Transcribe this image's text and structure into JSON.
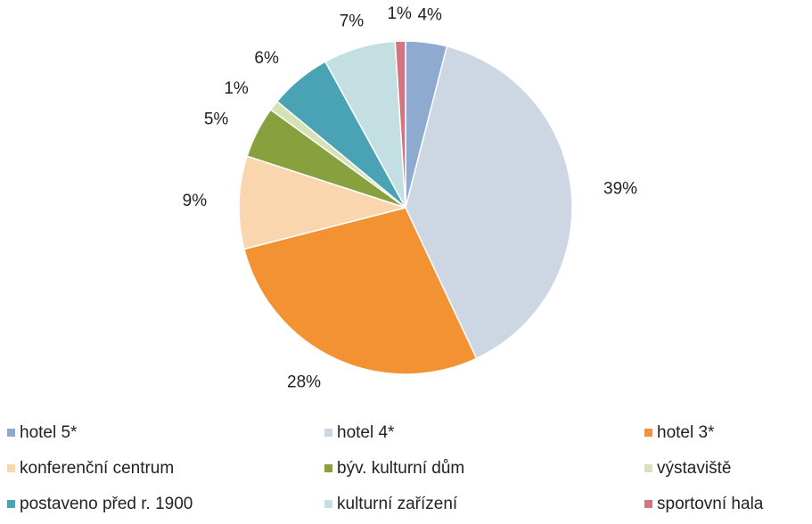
{
  "chart_data": {
    "type": "pie",
    "categories": [
      "hotel 5*",
      "hotel 4*",
      "hotel 3*",
      "konferenční centrum",
      "býv. kulturní dům",
      "výstaviště",
      "postaveno před r. 1900",
      "kulturní zařízení",
      "sportovní hala"
    ],
    "values": [
      4,
      39,
      28,
      9,
      5,
      1,
      6,
      7,
      1
    ],
    "value_labels": [
      "4%",
      "39%",
      "28%",
      "9%",
      "5%",
      "1%",
      "6%",
      "7%",
      "1%"
    ],
    "colors": [
      "#8eaacf",
      "#cdd6e3",
      "#f39232",
      "#f9d6ad",
      "#89a03e",
      "#d6e2b6",
      "#4aa3b5",
      "#c3dfe2",
      "#d47382"
    ],
    "legend": "bottom"
  }
}
